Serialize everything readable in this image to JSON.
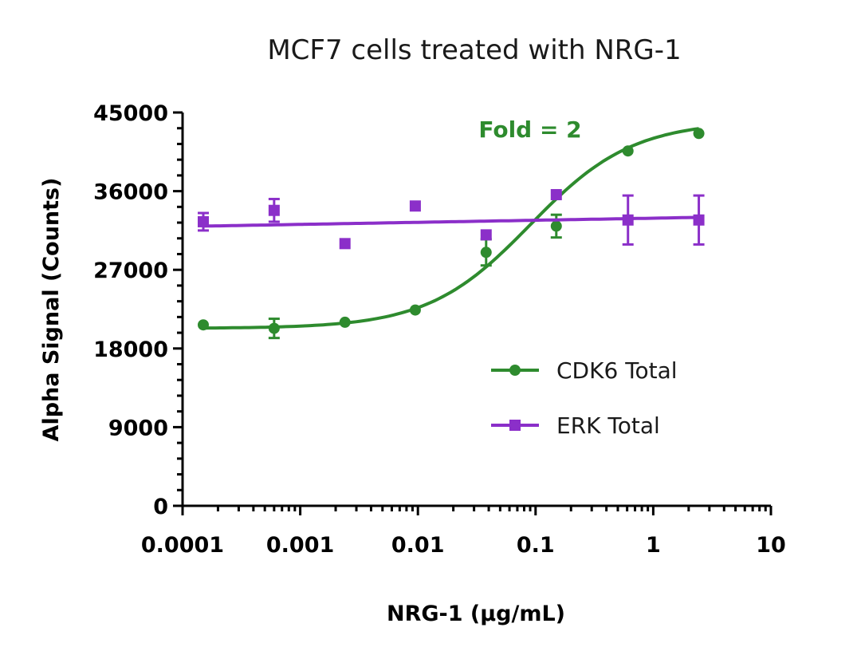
{
  "chart_data": {
    "type": "scatter",
    "title": "MCF7 cells treated with NRG-1",
    "xlabel": "NRG-1 (µg/mL)",
    "ylabel": "Alpha Signal (Counts)",
    "xscale": "log",
    "xlim": [
      0.0001,
      10
    ],
    "ylim": [
      0,
      45000
    ],
    "x_ticks": [
      "0.0001",
      "0.001",
      "0.01",
      "0.1",
      "1",
      "10"
    ],
    "y_ticks": [
      "0",
      "9000",
      "18000",
      "27000",
      "36000",
      "45000"
    ],
    "legend_position": "center-right",
    "grid": false,
    "annotation": {
      "text": "Fold = 2",
      "color": "#2e8b2e"
    },
    "series": [
      {
        "name": "CDK6 Total",
        "color": "#2e8b2e",
        "marker": "circle",
        "x": [
          0.00015,
          0.0006,
          0.0024,
          0.0095,
          0.038,
          0.15,
          0.61,
          2.44
        ],
        "y": [
          20700,
          20300,
          21000,
          22400,
          29000,
          32000,
          40600,
          42600
        ],
        "err": [
          0,
          1100,
          0,
          0,
          1500,
          1300,
          0,
          0
        ],
        "fit": {
          "model": "sigmoid",
          "bottom": 20300,
          "top": 44000,
          "ec50": 0.09,
          "hill": 1.0
        }
      },
      {
        "name": "ERK Total",
        "color": "#8b2fc9",
        "marker": "square",
        "x": [
          0.00015,
          0.0006,
          0.0024,
          0.0095,
          0.038,
          0.15,
          0.61,
          2.44
        ],
        "y": [
          32500,
          33800,
          30000,
          34300,
          31000,
          35600,
          32700,
          32700
        ],
        "err": [
          1000,
          1300,
          0,
          0,
          0,
          0,
          2800,
          2800
        ],
        "fit": {
          "model": "linear",
          "y_start": 32000,
          "y_end": 33000
        }
      }
    ]
  }
}
